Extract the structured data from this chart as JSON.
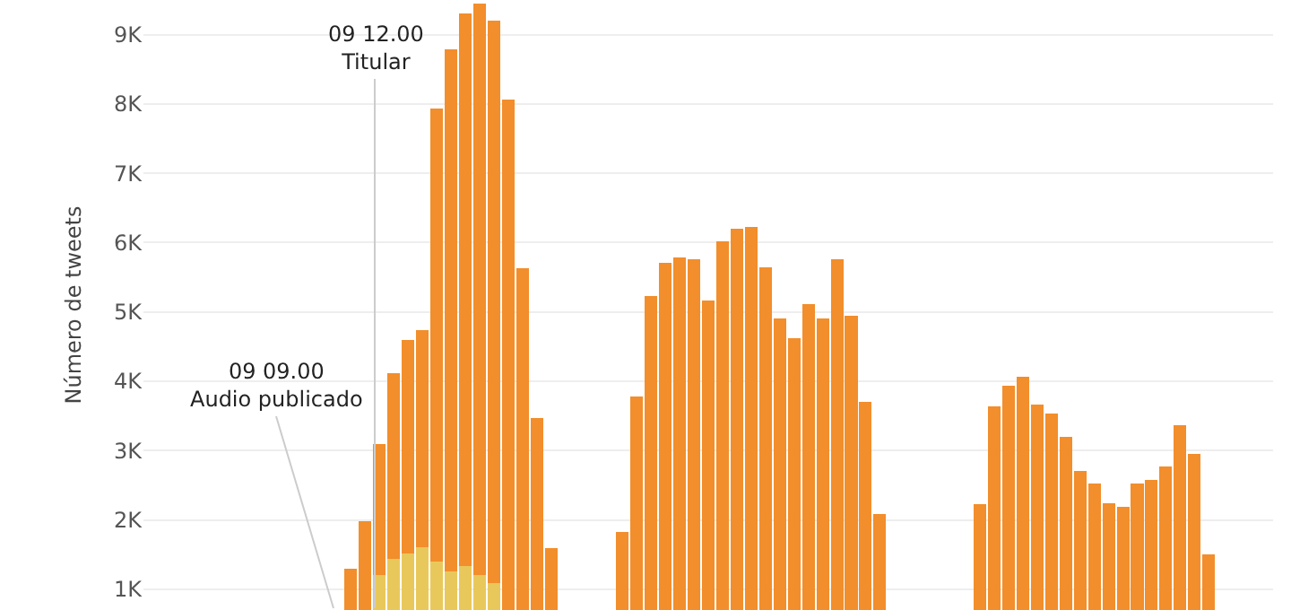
{
  "chart_data": {
    "type": "bar",
    "stacked": true,
    "ylabel": "Número de tweets",
    "categories": [
      null,
      null,
      null,
      null,
      null,
      null,
      null,
      null,
      null,
      null,
      null,
      null,
      null,
      null,
      null,
      null,
      null,
      null,
      null,
      null,
      null,
      null,
      null,
      null,
      null,
      null,
      null,
      null,
      null,
      null,
      null,
      null,
      null,
      null,
      null,
      null,
      null,
      null,
      null,
      null,
      null,
      null,
      null,
      null,
      null,
      null,
      null,
      null,
      null,
      null,
      null,
      null,
      null,
      null,
      null,
      null,
      null,
      null,
      null,
      null,
      null,
      null,
      null,
      null,
      null,
      null,
      null,
      null,
      null,
      null,
      null,
      null,
      null,
      null,
      null,
      null,
      null,
      null,
      null
    ],
    "series": [
      {
        "color": "#e9c85b",
        "values": [
          null,
          null,
          null,
          null,
          null,
          null,
          null,
          null,
          null,
          null,
          null,
          null,
          null,
          null,
          null,
          null,
          1210,
          1440,
          1510,
          1600,
          1400,
          1260,
          1330,
          1200,
          1090,
          null,
          null,
          null,
          null,
          null,
          null,
          null,
          null,
          null,
          null,
          null,
          null,
          null,
          null,
          null,
          null,
          null,
          null,
          null,
          null,
          null,
          null,
          null,
          null,
          null,
          null,
          null,
          null,
          null,
          null,
          null,
          null,
          null,
          null,
          null,
          null,
          null,
          null,
          null,
          null,
          null,
          null,
          null,
          null,
          null,
          null,
          null,
          null,
          null,
          null,
          null,
          null,
          null,
          null
        ]
      },
      {
        "color": "#f28e2b",
        "values": [
          null,
          null,
          null,
          null,
          null,
          null,
          null,
          null,
          null,
          null,
          null,
          null,
          null,
          null,
          1300,
          1980,
          1880,
          2680,
          3090,
          3140,
          6530,
          7530,
          7970,
          8250,
          8110,
          8070,
          5630,
          3470,
          1590,
          null,
          null,
          null,
          null,
          1820,
          3780,
          5230,
          5710,
          5790,
          5760,
          5160,
          6020,
          6200,
          6220,
          5640,
          4900,
          4620,
          5110,
          4900,
          5760,
          4950,
          3700,
          2090,
          null,
          null,
          null,
          null,
          null,
          null,
          2230,
          3640,
          3930,
          4070,
          3670,
          3540,
          3200,
          2700,
          2530,
          2240,
          2190,
          2520,
          2580,
          2770,
          3370,
          2950,
          1500,
          null,
          null,
          null,
          null
        ]
      }
    ],
    "ylim": [
      700,
      9500
    ],
    "yticks": [
      {
        "value": 1000,
        "label": "1K"
      },
      {
        "value": 2000,
        "label": "2K"
      },
      {
        "value": 3000,
        "label": "3K"
      },
      {
        "value": 4000,
        "label": "4K"
      },
      {
        "value": 5000,
        "label": "5K"
      },
      {
        "value": 6000,
        "label": "6K"
      },
      {
        "value": 7000,
        "label": "7K"
      },
      {
        "value": 8000,
        "label": "8K"
      },
      {
        "value": 9000,
        "label": "9K"
      }
    ],
    "grid": "y",
    "tick_labels": "y",
    "annotations": [
      "09 09.00\nAudio publicado",
      "09 12.00\nTitular"
    ]
  }
}
